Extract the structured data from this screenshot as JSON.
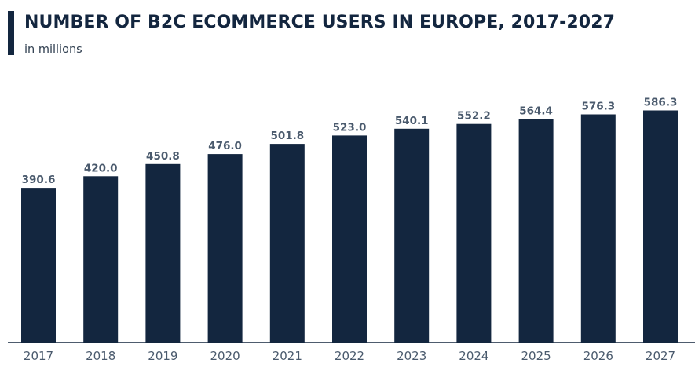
{
  "header": {
    "title": "NUMBER OF B2C ECOMMERCE USERS IN EUROPE, 2017-2027",
    "subtitle": "in millions"
  },
  "colors": {
    "bar": "#13263f",
    "accent": "#13263f",
    "label": "#4a5a6d",
    "axis": "#13263f"
  },
  "chart_data": {
    "type": "bar",
    "title": "NUMBER OF B2C ECOMMERCE USERS IN EUROPE, 2017-2027",
    "subtitle": "in millions",
    "categories": [
      "2017",
      "2018",
      "2019",
      "2020",
      "2021",
      "2022",
      "2023",
      "2024",
      "2025",
      "2026",
      "2027"
    ],
    "values": [
      390.6,
      420.0,
      450.8,
      476.0,
      501.8,
      523.0,
      540.1,
      552.2,
      564.4,
      576.3,
      586.3
    ],
    "value_labels": [
      "390.6",
      "420.0",
      "450.8",
      "476.0",
      "501.8",
      "523.0",
      "540.1",
      "552.2",
      "564.4",
      "576.3",
      "586.3"
    ],
    "xlabel": "",
    "ylabel": "",
    "ylim": [
      0,
      650
    ],
    "grid": false,
    "legend": "none"
  }
}
